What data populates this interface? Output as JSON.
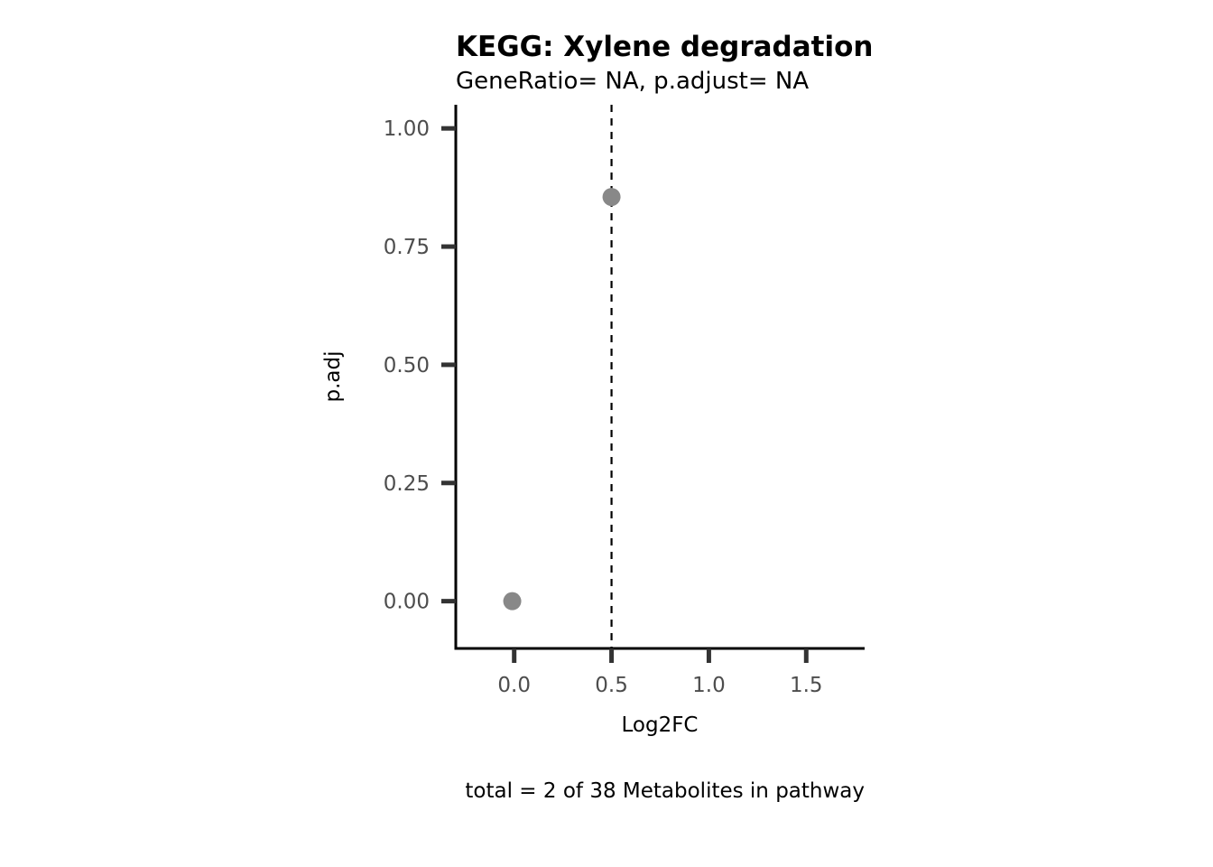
{
  "chart_data": {
    "type": "scatter",
    "title": "KEGG: Xylene degradation",
    "subtitle": "GeneRatio= NA, p.adjust= NA",
    "xlabel": "Log2FC",
    "ylabel": "p.adj",
    "caption": "total = 2 of 38 Metabolites in pathway",
    "xlim": [
      -0.3,
      1.8
    ],
    "ylim": [
      -0.1,
      1.05
    ],
    "xticks": [
      0,
      0.5,
      1,
      1.5
    ],
    "xtick_labels": [
      "0.0",
      "0.5",
      "1.0",
      "1.5"
    ],
    "yticks": [
      0,
      0.25,
      0.5,
      0.75,
      1
    ],
    "ytick_labels": [
      "0.00",
      "0.25",
      "0.50",
      "0.75",
      "1.00"
    ],
    "reference_line": {
      "axis": "x",
      "value": 0.5,
      "style": "dashed"
    },
    "grid": false,
    "points": [
      {
        "x": 0.5,
        "y": 0.855
      },
      {
        "x": -0.01,
        "y": 0.0
      }
    ],
    "colors": {
      "point": "#888888",
      "axis": "#000000",
      "tick": "#333333",
      "tick_label": "#4d4d4d"
    }
  }
}
